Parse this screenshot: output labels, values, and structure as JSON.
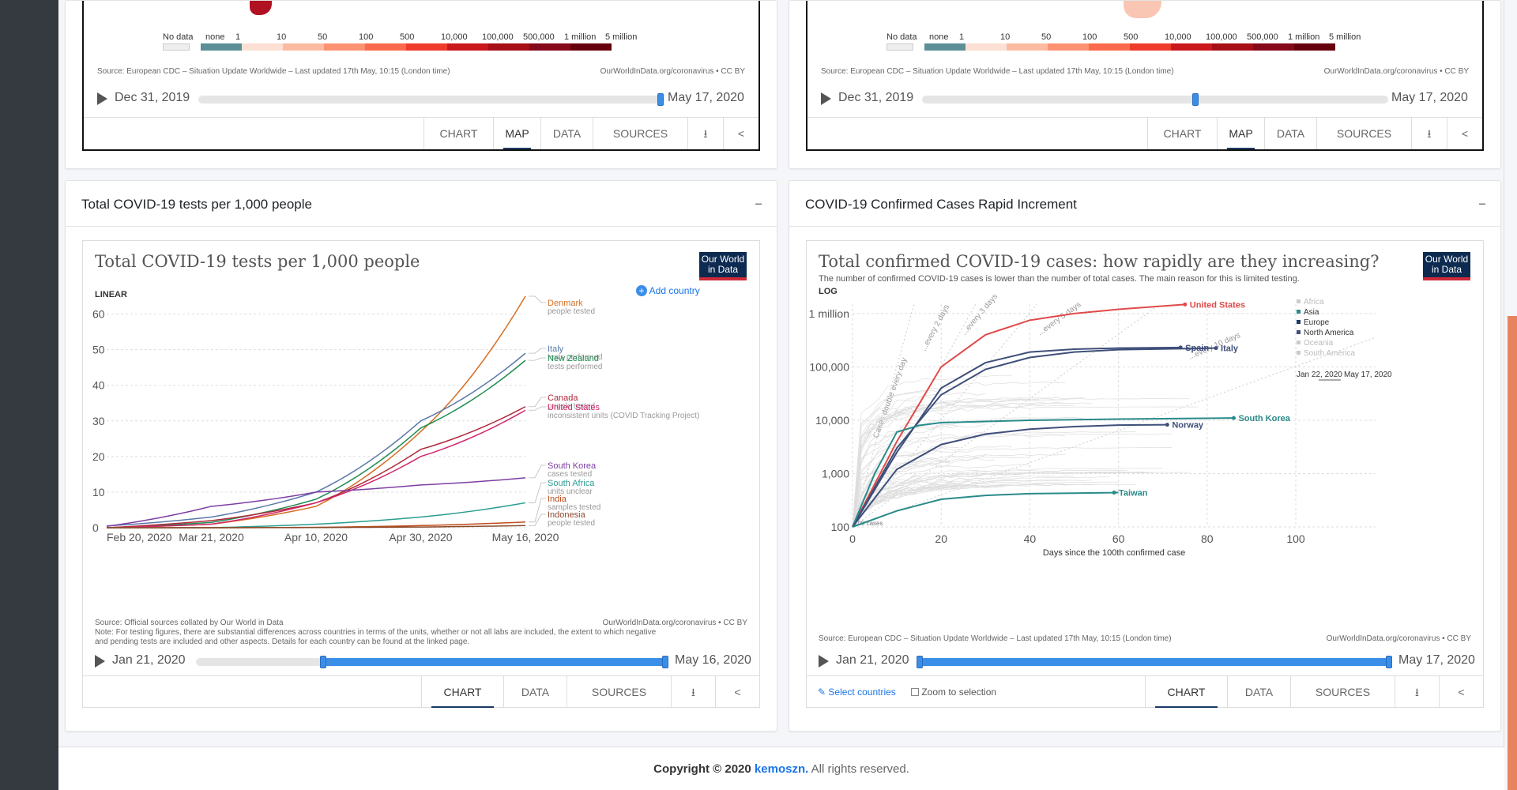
{
  "colors": {
    "accent": "#3b8ee8",
    "owid_navy": "#0d2a50",
    "owid_red": "#ce2a39"
  },
  "maps": [
    {
      "legend": [
        "No data",
        "none",
        "1",
        "10",
        "50",
        "100",
        "500",
        "10,000",
        "100,000",
        "500,000",
        "1 million",
        "5 million"
      ],
      "source": "Source: European CDC – Situation Update Worldwide – Last updated 17th May, 10:15 (London time)",
      "credit": "OurWorldInData.org/coronavirus • CC BY",
      "tl_start": "Dec 31, 2019",
      "tl_end": "May 17, 2020",
      "tl_position": 0.97,
      "tabs": [
        "CHART",
        "MAP",
        "DATA",
        "SOURCES"
      ]
    },
    {
      "legend": [
        "No data",
        "none",
        "1",
        "10",
        "50",
        "100",
        "500",
        "10,000",
        "100,000",
        "500,000",
        "1 million",
        "5 million"
      ],
      "source": "Source: European CDC – Situation Update Worldwide – Last updated 17th May, 10:15 (London time)",
      "credit": "OurWorldInData.org/coronavirus • CC BY",
      "tl_start": "Dec 31, 2019",
      "tl_end": "May 17, 2020",
      "tl_position": 0.58,
      "tabs": [
        "CHART",
        "MAP",
        "DATA",
        "SOURCES"
      ]
    }
  ],
  "tests_card": {
    "header": "Total COVID-19 tests per 1,000 people",
    "title": "Total COVID-19 tests per 1,000 people",
    "logo": "Our World in Data",
    "scale": "LINEAR",
    "add_country": "Add country",
    "source": "Source: Official sources collated by Our World in Data",
    "note1": "Note: For testing figures, there are substantial differences across countries in terms of the units, whether or not all labs are included, the extent to which negative",
    "note2": "and pending tests are included and other aspects. Details for each country can be found at the linked page.",
    "credit": "OurWorldInData.org/coronavirus • CC BY",
    "tl_start": "Jan 21, 2020",
    "tl_end": "May 16, 2020",
    "tl_range": [
      0.27,
      1.0
    ],
    "tabs": [
      "CHART",
      "DATA",
      "SOURCES"
    ]
  },
  "cases_card": {
    "header": "COVID-19 Confirmed Cases Rapid Increment",
    "title": "Total confirmed COVID-19 cases: how rapidly are they increasing?",
    "subtitle": "The number of confirmed COVID-19 cases is lower than the number of total cases. The main reason for this is limited testing.",
    "logo": "Our World in Data",
    "scale": "LOG",
    "source": "Source: European CDC – Situation Update Worldwide – Last updated 17th May, 10:15 (London time)",
    "credit": "OurWorldInData.org/coronavirus • CC BY",
    "tl_start": "Jan 21, 2020",
    "tl_end": "May 17, 2020",
    "tl_range": [
      0.0,
      1.0
    ],
    "select_countries": "Select countries",
    "zoom": "Zoom to selection",
    "tabs": [
      "CHART",
      "DATA",
      "SOURCES"
    ],
    "legend_regions": [
      "Africa",
      "Asia",
      "Europe",
      "North America",
      "Oceania",
      "South America"
    ],
    "legend_colors": [
      "#ccc",
      "#2a8a8a",
      "#1a3b66",
      "#3f4f7a",
      "#ccc",
      "#ccc"
    ],
    "legend_time_start": "Jan 22, 2020",
    "legend_time_end": "May 17, 2020",
    "guides": [
      "Cases double every day",
      "...every 2 days",
      "...every 3 days",
      "...every 5 days",
      "...every 10 days"
    ],
    "start_label": "100 cases"
  },
  "footer": {
    "prefix": "Copyright © 2020",
    "brand": "kemoszn.",
    "suffix": "All rights reserved."
  },
  "chart_data": [
    {
      "type": "line",
      "title": "Total COVID-19 tests per 1,000 people",
      "ylim": [
        0,
        65
      ],
      "yticks": [
        0,
        10,
        20,
        30,
        40,
        50,
        60
      ],
      "xticks": [
        "Feb 20, 2020",
        "Mar 21, 2020",
        "Apr 10, 2020",
        "Apr 30, 2020",
        "May 16, 2020"
      ],
      "x": [
        "Feb 20",
        "Mar 21",
        "Apr 10",
        "Apr 30",
        "May 16"
      ],
      "series": [
        {
          "name": "Denmark",
          "note": "people tested",
          "color": "#d66d22",
          "values": [
            0,
            1,
            6,
            27,
            65
          ]
        },
        {
          "name": "Italy",
          "note": "tests performed",
          "color": "#5b79a8",
          "values": [
            0.5,
            3,
            10,
            30,
            49
          ]
        },
        {
          "name": "New Zealand",
          "note": "tests performed",
          "color": "#1f8c53",
          "values": [
            0,
            1.5,
            8,
            28,
            47
          ]
        },
        {
          "name": "Canada",
          "note": "people tested",
          "color": "#b0283a",
          "values": [
            0,
            2,
            7,
            22,
            34
          ]
        },
        {
          "name": "United States",
          "note": "inconsistent units (COVID Tracking Project)",
          "color": "#d1266c",
          "values": [
            0,
            1,
            7,
            20,
            33
          ]
        },
        {
          "name": "South Korea",
          "note": "cases tested",
          "color": "#7e3ea3",
          "values": [
            0.4,
            6,
            10,
            12,
            14
          ]
        },
        {
          "name": "South Africa",
          "note": "units unclear",
          "color": "#2a9d8f",
          "values": [
            0,
            0,
            1,
            3,
            7
          ]
        },
        {
          "name": "India",
          "note": "samples tested",
          "color": "#c14c1a",
          "values": [
            0,
            0,
            0.1,
            0.6,
            1.6
          ]
        },
        {
          "name": "Indonesia",
          "note": "people tested",
          "color": "#8a4a2a",
          "values": [
            0,
            0,
            0.05,
            0.2,
            0.6
          ]
        }
      ]
    },
    {
      "type": "line",
      "title": "Total confirmed COVID-19 cases: how rapidly are they increasing?",
      "xlabel": "Days since the 100th confirmed case",
      "ylabel": "",
      "yscale": "log",
      "ylim": [
        100,
        1500000
      ],
      "xlim": [
        0,
        118
      ],
      "yticks": [
        "100",
        "1,000",
        "10,000",
        "100,000",
        "1 million"
      ],
      "xticks": [
        0,
        20,
        40,
        60,
        80,
        100
      ],
      "series": [
        {
          "name": "United States",
          "color": "#e04a4a",
          "x": [
            0,
            10,
            20,
            30,
            40,
            50,
            60,
            75
          ],
          "y": [
            100,
            4000,
            100000,
            400000,
            750000,
            1000000,
            1200000,
            1480000
          ]
        },
        {
          "name": "Spain",
          "color": "#3f4f7a",
          "x": [
            0,
            10,
            20,
            30,
            40,
            50,
            60,
            74
          ],
          "y": [
            100,
            2500,
            40000,
            120000,
            190000,
            215000,
            225000,
            231000
          ]
        },
        {
          "name": "Italy",
          "color": "#3f4f7a",
          "x": [
            0,
            10,
            20,
            30,
            40,
            50,
            60,
            82
          ],
          "y": [
            100,
            3000,
            30000,
            90000,
            150000,
            190000,
            210000,
            225000
          ]
        },
        {
          "name": "South Korea",
          "color": "#2a8a8a",
          "x": [
            0,
            5,
            10,
            15,
            20,
            40,
            60,
            86
          ],
          "y": [
            100,
            1000,
            6000,
            8000,
            9000,
            10000,
            10500,
            11000
          ]
        },
        {
          "name": "Norway",
          "color": "#3f4f7a",
          "x": [
            0,
            10,
            20,
            30,
            40,
            50,
            60,
            71
          ],
          "y": [
            100,
            1200,
            3500,
            5500,
            6800,
            7600,
            8100,
            8250
          ]
        },
        {
          "name": "Taiwan",
          "color": "#2a8a8a",
          "x": [
            0,
            10,
            20,
            30,
            40,
            50,
            60,
            59
          ],
          "y": [
            100,
            200,
            330,
            390,
            420,
            430,
            440,
            440
          ]
        }
      ]
    }
  ]
}
